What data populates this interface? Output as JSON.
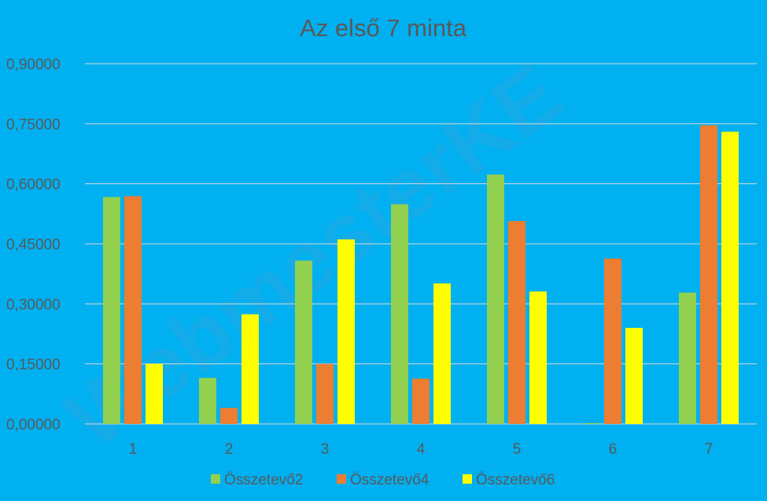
{
  "chart_data": {
    "type": "bar",
    "title": "Az első 7 minta",
    "categories": [
      "1",
      "2",
      "3",
      "4",
      "5",
      "6",
      "7"
    ],
    "series": [
      {
        "name": "Összetevő2",
        "color": "#92d050",
        "values": [
          0.567,
          0.115,
          0.408,
          0.549,
          0.623,
          0.002,
          0.328
        ]
      },
      {
        "name": "Összetevő4",
        "color": "#ed7d31",
        "values": [
          0.569,
          0.04,
          0.15,
          0.113,
          0.507,
          0.413,
          0.746
        ]
      },
      {
        "name": "Összetevő6",
        "color": "#ffff00",
        "values": [
          0.15,
          0.274,
          0.461,
          0.351,
          0.331,
          0.24,
          0.73
        ]
      }
    ],
    "yticks": [
      "0,00000",
      "0,15000",
      "0,30000",
      "0,45000",
      "0,60000",
      "0,75000",
      "0,90000"
    ],
    "ylim": [
      0,
      0.9
    ],
    "grid": true,
    "legend_position": "bottom",
    "xlabel": "",
    "ylabel": ""
  },
  "background_color": "#00b0f0",
  "watermark": "WebmesterKE"
}
